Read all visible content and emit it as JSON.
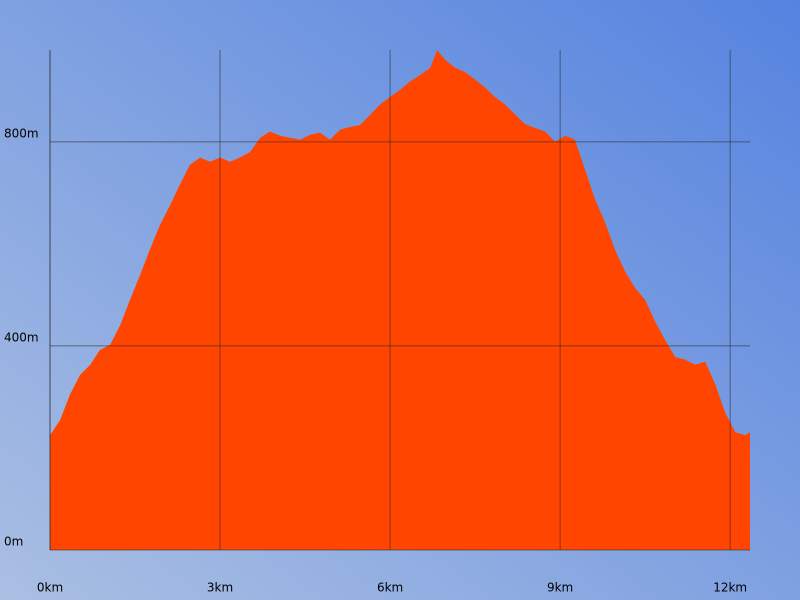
{
  "chart_data": {
    "type": "area",
    "x": [
      0,
      0.18,
      0.35,
      0.53,
      0.71,
      0.88,
      1.06,
      1.24,
      1.41,
      1.59,
      1.76,
      1.94,
      2.12,
      2.29,
      2.47,
      2.65,
      2.82,
      3.0,
      3.18,
      3.35,
      3.53,
      3.71,
      3.88,
      4.06,
      4.24,
      4.41,
      4.59,
      4.76,
      4.94,
      5.12,
      5.29,
      5.47,
      5.65,
      5.82,
      6.0,
      6.18,
      6.35,
      6.53,
      6.71,
      6.83,
      6.97,
      7.15,
      7.32,
      7.5,
      7.68,
      7.85,
      8.03,
      8.21,
      8.38,
      8.56,
      8.74,
      8.91,
      9.09,
      9.26,
      9.44,
      9.62,
      9.79,
      9.97,
      10.15,
      10.32,
      10.5,
      10.68,
      10.85,
      11.03,
      11.21,
      11.38,
      11.56,
      11.74,
      11.91,
      12.09,
      12.27,
      12.35
    ],
    "values": [
      225,
      255,
      304,
      343,
      363,
      392,
      402,
      441,
      490,
      539,
      588,
      637,
      676,
      716,
      755,
      769,
      761,
      769,
      761,
      769,
      780,
      808,
      820,
      812,
      808,
      804,
      814,
      818,
      804,
      824,
      829,
      833,
      853,
      873,
      888,
      902,
      918,
      931,
      945,
      980,
      961,
      945,
      937,
      922,
      906,
      888,
      873,
      853,
      835,
      827,
      820,
      800,
      812,
      804,
      745,
      686,
      643,
      588,
      545,
      514,
      490,
      447,
      412,
      378,
      373,
      363,
      369,
      324,
      270,
      231,
      225,
      231
    ],
    "color": "#ff4500",
    "xlim": [
      0,
      12.35
    ],
    "xticks": [
      {
        "value": 0,
        "label": "0km"
      },
      {
        "value": 3,
        "label": "3km"
      },
      {
        "value": 6,
        "label": "6km"
      },
      {
        "value": 9,
        "label": "9km"
      },
      {
        "value": 12,
        "label": "12km"
      }
    ],
    "ylim": [
      0,
      980
    ],
    "yticks": [
      {
        "value": 0,
        "label": "0m"
      },
      {
        "value": 400,
        "label": "400m"
      },
      {
        "value": 800,
        "label": "800m"
      }
    ],
    "grid": true
  }
}
